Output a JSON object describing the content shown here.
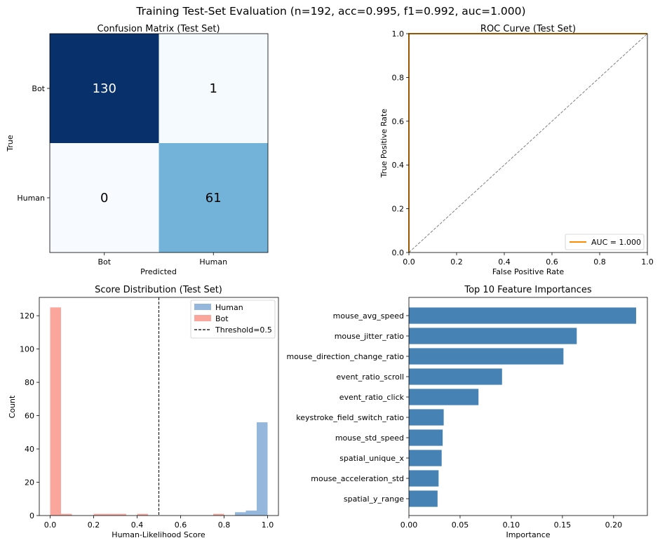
{
  "suptitle": "Training Test-Set Evaluation  (n=192, acc=0.995, f1=0.992, auc=1.000)",
  "chart_data": [
    {
      "type": "heatmap",
      "title": "Confusion Matrix (Test Set)",
      "xlabel": "Predicted",
      "ylabel": "True",
      "x_categories": [
        "Bot",
        "Human"
      ],
      "y_categories": [
        "Bot",
        "Human"
      ],
      "values": [
        [
          130,
          1
        ],
        [
          0,
          61
        ]
      ],
      "colormap": "Blues",
      "colors": {
        "low": "#f7fbff",
        "mid": "#6baed6",
        "high": "#08306b"
      }
    },
    {
      "type": "line",
      "title": "ROC Curve (Test Set)",
      "xlabel": "False Positive Rate",
      "ylabel": "True Positive Rate",
      "xlim": [
        0,
        1
      ],
      "ylim": [
        0,
        1
      ],
      "xticks": [
        "0.0",
        "0.2",
        "0.4",
        "0.6",
        "0.8",
        "1.0"
      ],
      "yticks": [
        "0.0",
        "0.2",
        "0.4",
        "0.6",
        "0.8",
        "1.0"
      ],
      "series": [
        {
          "name": "AUC = 1.000",
          "color": "#ff8c00",
          "x": [
            0,
            0,
            1
          ],
          "y": [
            0,
            1,
            1
          ]
        },
        {
          "color": "#808080",
          "dashed": true,
          "x": [
            0,
            1
          ],
          "y": [
            0,
            1
          ]
        }
      ],
      "legend_position": "lower-right"
    },
    {
      "type": "bar",
      "subtype": "histogram",
      "title": "Score Distribution (Test Set)",
      "xlabel": "Human-Likelihood Score",
      "ylabel": "Count",
      "xlim": [
        -0.05,
        1.05
      ],
      "ylim": [
        0,
        131
      ],
      "xticks": [
        "0.0",
        "0.2",
        "0.4",
        "0.6",
        "0.8",
        "1.0"
      ],
      "yticks": [
        "0",
        "20",
        "40",
        "60",
        "80",
        "100",
        "120"
      ],
      "bin_width": 0.05,
      "series": [
        {
          "name": "Human",
          "color": "#6699cc",
          "bins": [
            {
              "x": 0.85,
              "count": 2
            },
            {
              "x": 0.9,
              "count": 3
            },
            {
              "x": 0.95,
              "count": 56
            }
          ]
        },
        {
          "name": "Bot",
          "color": "#fa8072",
          "bins": [
            {
              "x": 0.0,
              "count": 125
            },
            {
              "x": 0.05,
              "count": 1
            },
            {
              "x": 0.2,
              "count": 1
            },
            {
              "x": 0.25,
              "count": 1
            },
            {
              "x": 0.3,
              "count": 1
            },
            {
              "x": 0.4,
              "count": 1
            },
            {
              "x": 0.75,
              "count": 1
            }
          ]
        }
      ],
      "threshold": {
        "name": "Threshold=0.5",
        "x": 0.5
      },
      "legend_position": "top-right"
    },
    {
      "type": "bar",
      "orientation": "horizontal",
      "title": "Top 10 Feature Importances",
      "xlabel": "Importance",
      "xlim": [
        0,
        0.233
      ],
      "xticks": [
        "0.00",
        "0.05",
        "0.10",
        "0.15",
        "0.20"
      ],
      "color": "#4682b4",
      "categories": [
        "mouse_avg_speed",
        "mouse_jitter_ratio",
        "mouse_direction_change_ratio",
        "event_ratio_scroll",
        "event_ratio_click",
        "keystroke_field_switch_ratio",
        "mouse_std_speed",
        "spatial_unique_x",
        "mouse_acceleration_std",
        "spatial_y_range"
      ],
      "values": [
        0.222,
        0.164,
        0.151,
        0.091,
        0.068,
        0.034,
        0.033,
        0.032,
        0.029,
        0.028
      ]
    }
  ]
}
